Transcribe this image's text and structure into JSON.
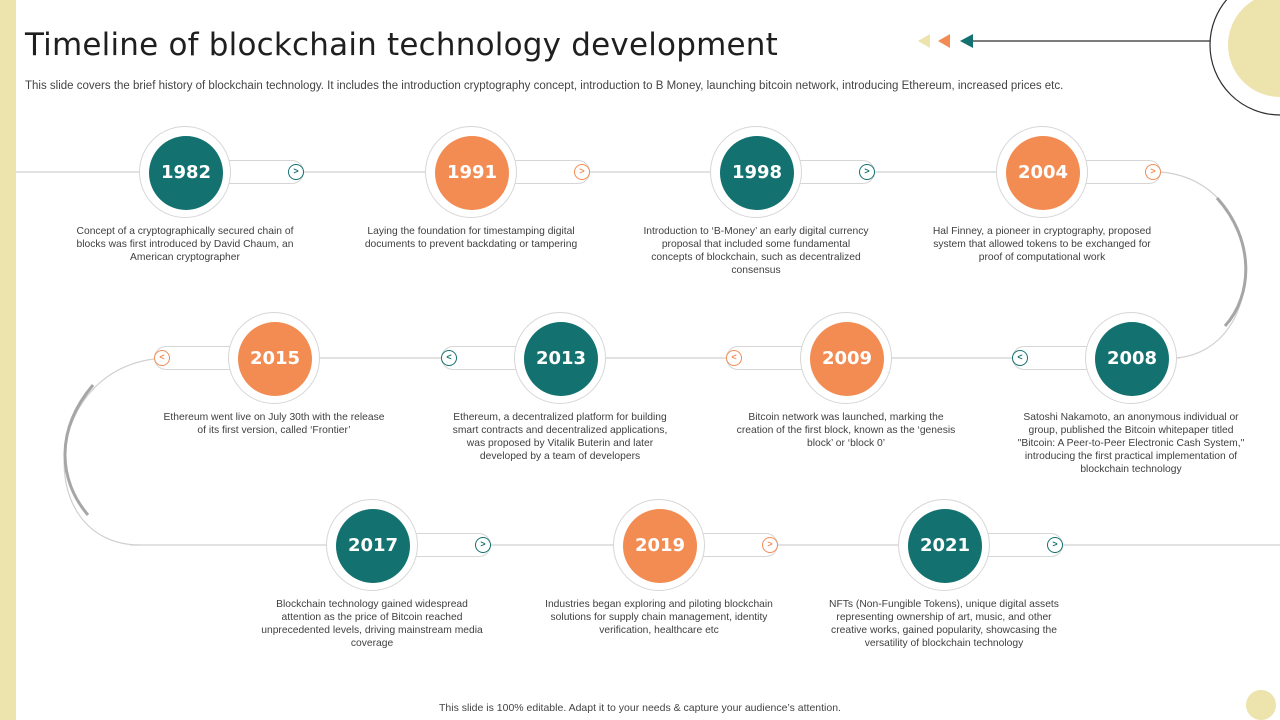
{
  "title": "Timeline of blockchain technology development",
  "subtitle": "This slide covers the brief history of blockchain technology. It includes the introduction cryptography concept, introduction to B Money,  launching bitcoin network, introducing Ethereum, increased prices etc.",
  "footer": "This slide is 100% editable.  Adapt it to your needs & capture your audience’s attention.",
  "colors": {
    "teal": "#13726f",
    "orange": "#f28c52",
    "accent_yellow": "#ede3ad"
  },
  "milestones": [
    {
      "year": "1982",
      "color": "teal",
      "description": "Concept of a cryptographically secured chain of blocks was first introduced by David Chaum,  an American cryptographer"
    },
    {
      "year": "1991",
      "color": "orange",
      "description": "Laying the foundation for timestamping digital documents to prevent backdating or tampering"
    },
    {
      "year": "1998",
      "color": "teal",
      "description": "Introduction to ‘B-Money’ an early digital currency proposal that included some fundamental concepts of blockchain, such as decentralized consensus"
    },
    {
      "year": "2004",
      "color": "orange",
      "description": "Hal Finney, a pioneer in cryptography, proposed system that allowed tokens to be exchanged for proof of computational work"
    },
    {
      "year": "2008",
      "color": "teal",
      "description": "Satoshi Nakamoto,  an anonymous individual or group, published the Bitcoin  whitepaper titled \"Bitcoin: A Peer-to-Peer Electronic Cash System,\" introducing the first practical implementation  of blockchain technology"
    },
    {
      "year": "2009",
      "color": "orange",
      "description": "Bitcoin network was launched, marking the creation of the first block, known as the ‘genesis block’ or ‘block 0’"
    },
    {
      "year": "2013",
      "color": "teal",
      "description": "Ethereum,  a decentralized platform for building smart contracts and decentralized applications, was proposed by Vitalik Buterin and later developed by a team of developers"
    },
    {
      "year": "2015",
      "color": "orange",
      "description": "Ethereum  went live on July 30th with the release of its  first version, called ‘Frontier’"
    },
    {
      "year": "2017",
      "color": "teal",
      "description": "Blockchain technology gained widespread attention as the price of Bitcoin reached unprecedented levels, driving mainstream media coverage"
    },
    {
      "year": "2019",
      "color": "orange",
      "description": "Industries began exploring and piloting blockchain solutions for supply chain management,  identity verification, healthcare etc"
    },
    {
      "year": "2021",
      "color": "teal",
      "description": "NFTs (Non-Fungible Tokens), unique digital assets representing ownership of art, music, and other creative works, gained popularity, showcasing the versatility of blockchain technology"
    }
  ]
}
